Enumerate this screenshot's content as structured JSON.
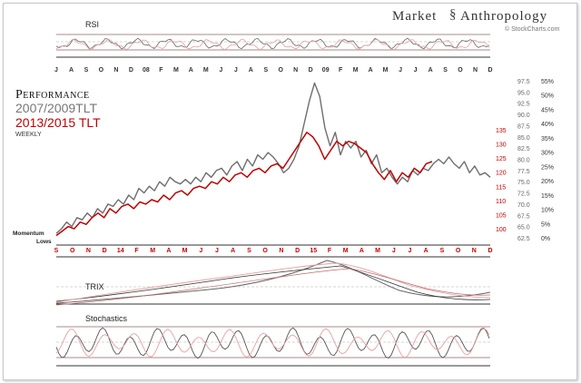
{
  "brand": {
    "title": "Market",
    "title2": "Anthropology",
    "credit": "© StockCharts.com"
  },
  "legend": {
    "heading": "Performance",
    "series_a": "2007/2009TLT",
    "series_b": "2013/2015 TLT",
    "freq": "WEEKLY",
    "momentum": [
      "Momentum",
      "Lows"
    ]
  },
  "panels": {
    "rsi": "RSI",
    "trix": "TRIX",
    "stochastics": "Stochastics"
  },
  "colors": {
    "series_a": "#6e6e6e",
    "series_b": "#c00000",
    "pink": "#e8a0a0",
    "grid": "#8c6464"
  },
  "chart_data": {
    "type": "line",
    "top_axis_labels": [
      "J",
      "A",
      "S",
      "O",
      "N",
      "D",
      "08",
      "F",
      "M",
      "A",
      "M",
      "J",
      "J",
      "A",
      "S",
      "O",
      "N",
      "D",
      "09",
      "F",
      "M",
      "A",
      "M",
      "J",
      "J",
      "A",
      "S",
      "O",
      "N",
      "D"
    ],
    "bottom_axis_labels": [
      "S",
      "O",
      "N",
      "D",
      "14",
      "F",
      "M",
      "A",
      "M",
      "J",
      "J",
      "A",
      "S",
      "O",
      "N",
      "D",
      "15",
      "F",
      "M",
      "A",
      "M",
      "J",
      "J",
      "A",
      "S",
      "O",
      "N",
      "D"
    ],
    "right_axis_gray": [
      "97.5",
      "95.0",
      "92.5",
      "90.0",
      "87.5",
      "85.0",
      "82.5",
      "80.0",
      "77.5",
      "75.0",
      "72.5",
      "70.0",
      "67.5",
      "65.0",
      "62.5"
    ],
    "right_axis_red": [
      "135",
      "130",
      "125",
      "120",
      "115",
      "110",
      "105",
      "100"
    ],
    "right_axis_pct": [
      "55%",
      "50%",
      "45%",
      "40%",
      "35%",
      "30%",
      "25%",
      "20%",
      "15%",
      "10%",
      "5%",
      "0%"
    ],
    "ylim_gray": [
      62.5,
      97.5
    ],
    "series": [
      {
        "values": [
          63.5,
          64.5,
          66,
          65,
          67,
          66.5,
          68,
          67,
          69,
          68,
          70,
          69.5,
          71,
          70,
          72,
          71,
          73.5,
          72.5,
          74,
          73,
          75,
          74,
          76,
          75,
          74.5,
          75.5,
          74.5,
          76,
          75,
          77,
          76,
          77.5,
          78,
          76.5,
          78.5,
          79.5,
          77.5,
          80,
          78.5,
          81,
          80,
          81.5,
          80.5,
          79,
          77,
          78,
          80,
          83,
          88,
          93,
          97,
          94,
          87,
          83,
          86,
          81,
          84,
          82.5,
          84,
          80.5,
          82,
          79,
          81,
          77,
          78,
          76,
          74.5,
          76,
          75,
          77.5,
          76.5,
          78,
          77.5,
          79,
          80,
          79,
          80.5,
          79,
          78,
          79.5,
          77,
          78.5,
          76.5,
          77,
          76
        ]
      },
      {
        "values": [
          63,
          64,
          65,
          64.5,
          66,
          65.5,
          67,
          68,
          67,
          69,
          68,
          69.5,
          70,
          69,
          70.5,
          70,
          71,
          70.5,
          72,
          71,
          72.5,
          73,
          72,
          73.5,
          74,
          73.5,
          75,
          74.5,
          76,
          75,
          76.5,
          77,
          76,
          77.5,
          78,
          77,
          78.5,
          79,
          78,
          80,
          82,
          84,
          86,
          85,
          83,
          80,
          82,
          84,
          83,
          84,
          83.5,
          82.5,
          81.5,
          79,
          77,
          75.5,
          77.5,
          75,
          77,
          76,
          78,
          77,
          79,
          79.5
        ]
      }
    ]
  }
}
